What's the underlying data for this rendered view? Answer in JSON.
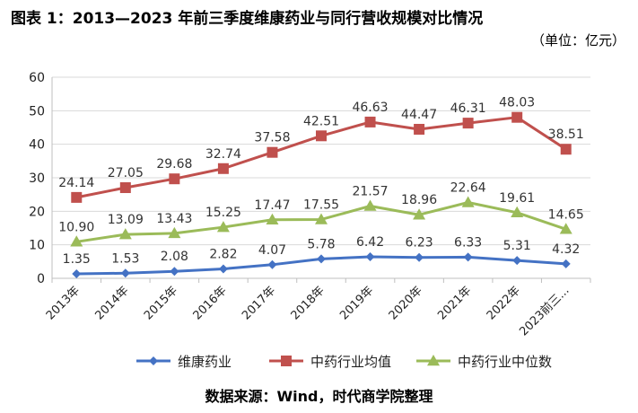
{
  "figure": {
    "title": "图表 1：2013—2023 年前三季度维康药业与同行营收规模对比情况",
    "unit": "（单位：亿元）",
    "source": "数据来源：Wind，时代商学院整理"
  },
  "chart_data": {
    "type": "line",
    "categories": [
      "2013年",
      "2014年",
      "2015年",
      "2016年",
      "2017年",
      "2018年",
      "2019年",
      "2020年",
      "2021年",
      "2022年",
      "2023前三..."
    ],
    "ylim": [
      0,
      60
    ],
    "yticks": [
      0,
      10,
      20,
      30,
      40,
      50,
      60
    ],
    "grid": true,
    "legend_position": "bottom",
    "series": [
      {
        "name": "维康药业",
        "color": "#4472C4",
        "marker": "diamond",
        "values": [
          1.35,
          1.53,
          2.08,
          2.82,
          4.07,
          5.78,
          6.42,
          6.23,
          6.33,
          5.31,
          4.32
        ]
      },
      {
        "name": "中药行业均值",
        "color": "#C0504D",
        "marker": "square",
        "values": [
          24.14,
          27.05,
          29.68,
          32.74,
          37.58,
          42.51,
          46.63,
          44.47,
          46.31,
          48.03,
          38.51
        ]
      },
      {
        "name": "中药行业中位数",
        "color": "#9BBB59",
        "marker": "triangle",
        "values": [
          10.9,
          13.09,
          13.43,
          15.25,
          17.47,
          17.55,
          21.57,
          18.96,
          22.64,
          19.61,
          14.65
        ]
      }
    ]
  }
}
